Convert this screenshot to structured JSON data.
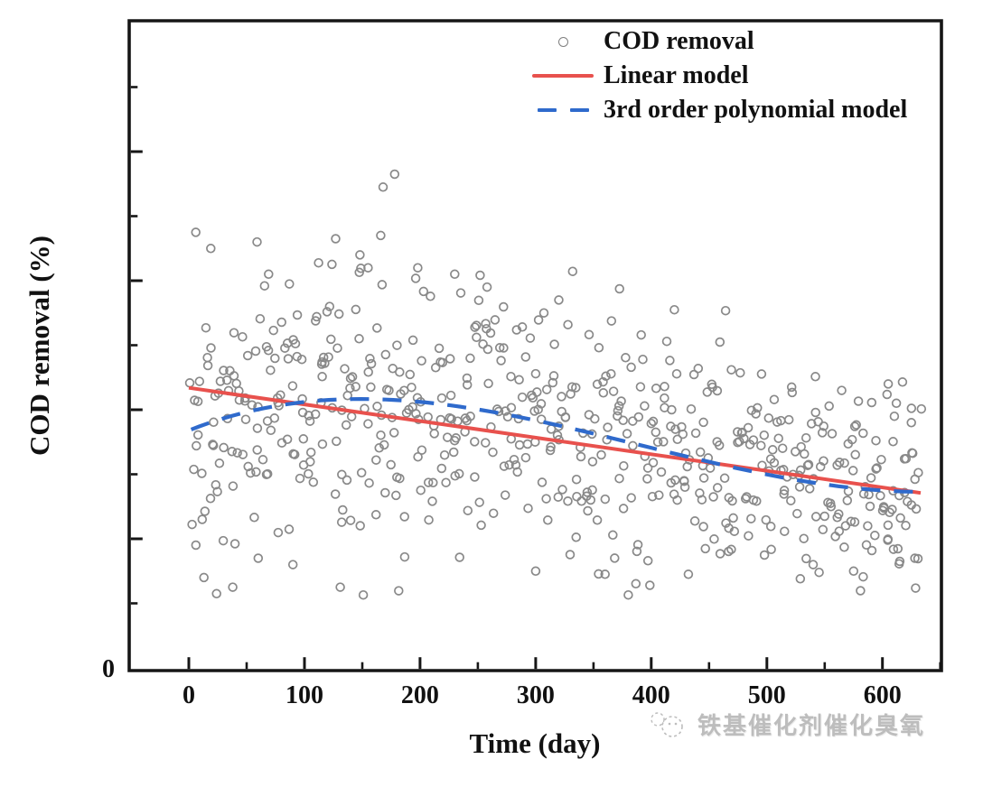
{
  "chart_data": {
    "type": "scatter",
    "title": "",
    "xlabel": "Time (day)",
    "ylabel": "COD removal (%)",
    "grid": false,
    "legend_position": "inside-top-right",
    "x_axis": {
      "range_display": [
        -51.6,
        651
      ],
      "ticks_major": [
        0,
        100,
        200,
        300,
        400,
        500,
        600
      ],
      "tick_labels": [
        "0",
        "100",
        "200",
        "300",
        "400",
        "500",
        "600"
      ],
      "ticks_minor": [
        50,
        150,
        250,
        350,
        450,
        550,
        650
      ]
    },
    "y_axis": {
      "range_display": [
        0,
        100.3
      ],
      "ticks_major": [
        20,
        40,
        60,
        80
      ],
      "ticks_minor": [
        10,
        30,
        50,
        70,
        90
      ],
      "tick_labels": [
        "0"
      ],
      "zero_label": "0",
      "note": "only the 0 tick is labeled in the figure"
    },
    "series": [
      {
        "name": "COD removal",
        "type": "scatter",
        "marker": "open-circle",
        "marker_color": "#898989",
        "x_span_days": [
          0,
          633
        ],
        "y_span_percent": [
          11,
          77
        ],
        "generator": {
          "seed": 1337,
          "n": 600,
          "x_min": 2,
          "x_max": 633,
          "x_jitter": 2,
          "sd0": 10.8,
          "sd_slope": -0.0048,
          "low_tail_prob": 0.05,
          "low_tail_base": 4,
          "low_tail_span": 9,
          "soft_cap": 60,
          "soft_factor": 0.38,
          "clip": [
            11.3,
            78
          ]
        },
        "outlier_points": [
          [
            6,
            67.5
          ],
          [
            19,
            65
          ],
          [
            59,
            66
          ],
          [
            69,
            61
          ],
          [
            87,
            59.5
          ],
          [
            127,
            66.5
          ],
          [
            148,
            64
          ],
          [
            155,
            62
          ],
          [
            166,
            67
          ],
          [
            168,
            74.5
          ],
          [
            178,
            76.5
          ],
          [
            198,
            62
          ],
          [
            230,
            61
          ],
          [
            258,
            59
          ],
          [
            320,
            57
          ],
          [
            420,
            55.5
          ],
          [
            605,
            44
          ],
          [
            612,
            41
          ],
          [
            625,
            38
          ],
          [
            13,
            14
          ],
          [
            24,
            11.5
          ],
          [
            38,
            12.5
          ],
          [
            60,
            17
          ],
          [
            90,
            16
          ],
          [
            131,
            12.5
          ],
          [
            300,
            15
          ],
          [
            360,
            14.5
          ],
          [
            540,
            16
          ],
          [
            575,
            15
          ],
          [
            615,
            16.5
          ],
          [
            628,
            17
          ]
        ]
      },
      {
        "name": "Linear model",
        "type": "line",
        "color": "#e8514d",
        "points": [
          [
            0,
            43.4
          ],
          [
            633,
            27.1
          ]
        ],
        "table": [
          [
            0,
            43.4
          ],
          [
            100,
            40.8
          ],
          [
            200,
            38.2
          ],
          [
            300,
            35.7
          ],
          [
            400,
            33.1
          ],
          [
            500,
            30.5
          ],
          [
            600,
            27.9
          ],
          [
            633,
            27.1
          ]
        ]
      },
      {
        "name": "3rd order polynomial model",
        "type": "line-dashed",
        "color": "#2f6acc",
        "dash_pattern": [
          21,
          15
        ],
        "poly_coeffs": [
          36.8,
          0.071,
          -0.00029485,
          2.511e-07
        ],
        "x_domain": [
          2,
          633
        ],
        "table": [
          [
            0,
            36.8
          ],
          [
            50,
            39.6
          ],
          [
            100,
            41.2
          ],
          [
            150,
            41.7
          ],
          [
            200,
            41.2
          ],
          [
            250,
            40.0
          ],
          [
            300,
            38.3
          ],
          [
            350,
            36.3
          ],
          [
            400,
            34.1
          ],
          [
            450,
            31.9
          ],
          [
            500,
            30.0
          ],
          [
            550,
            28.4
          ],
          [
            600,
            27.5
          ],
          [
            633,
            27.3
          ]
        ]
      }
    ]
  },
  "axes_labels": {
    "x": "Time (day)",
    "y": "COD removal (%)",
    "y_zero": "0"
  },
  "watermark": {
    "text": "铁基催化剂催化臭氧"
  }
}
